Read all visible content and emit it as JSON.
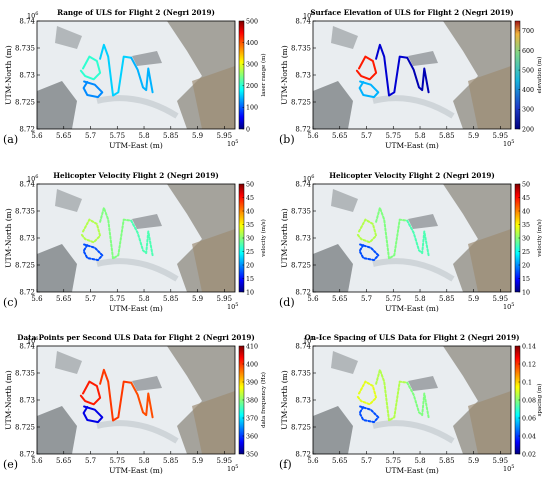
{
  "chart_data": [
    {
      "type": "map",
      "panel_label": "(a)",
      "title": "Range of ULS for Flight 2 (Negri 2019)",
      "xlabel": "UTM-East (m)",
      "ylabel": "UTM-North (m)",
      "x_ticks": [
        "5.6",
        "5.65",
        "5.7",
        "5.75",
        "5.8",
        "5.85",
        "5.9",
        "5.95"
      ],
      "y_ticks": [
        "8.72",
        "8.725",
        "8.73",
        "8.735",
        "8.74"
      ],
      "x_exponent": "10",
      "x_exponent_power": "5",
      "y_exponent": "10",
      "y_exponent_power": "6",
      "xlim": [
        560000,
        597000
      ],
      "ylim": [
        8720000,
        8740000
      ],
      "colorbar": {
        "label": "laser range (m)",
        "ticks": [
          "0",
          "100",
          "200",
          "300",
          "400",
          "500"
        ],
        "range": [
          0,
          500
        ]
      },
      "track_style": "solid",
      "series_color_values": {
        "loops": 0.42,
        "lower": 0.26,
        "main": 0.33,
        "east": 0.3
      }
    },
    {
      "type": "map",
      "panel_label": "(b)",
      "title": "Surface Elevation of ULS for Flight 2 (Negri 2019)",
      "xlabel": "UTM-East (m)",
      "ylabel": "UTM-North (m)",
      "x_ticks": [
        "5.6",
        "5.65",
        "5.7",
        "5.75",
        "5.8",
        "5.85",
        "5.9",
        "5.95"
      ],
      "y_ticks": [
        "8.72",
        "8.725",
        "8.73",
        "8.735",
        "8.74"
      ],
      "x_exponent": "10",
      "x_exponent_power": "5",
      "y_exponent": "10",
      "y_exponent_power": "6",
      "xlim": [
        560000,
        597000
      ],
      "ylim": [
        8720000,
        8740000
      ],
      "colorbar": {
        "label": "elevation (m)",
        "ticks": [
          "200",
          "300",
          "400",
          "500",
          "600",
          "700"
        ],
        "range": [
          200,
          750
        ]
      },
      "track_style": "solid",
      "series_color_values": {
        "loops": 0.85,
        "lower": 0.3,
        "main": 0.08,
        "east": 0.05
      }
    },
    {
      "type": "map",
      "panel_label": "(c)",
      "title": "Helicopter Velocity Flight 2 (Negri 2019)",
      "xlabel": "UTM-East (m)",
      "ylabel": "UTM-North (m)",
      "x_ticks": [
        "5.6",
        "5.65",
        "5.7",
        "5.75",
        "5.8",
        "5.85",
        "5.9",
        "5.95"
      ],
      "y_ticks": [
        "8.72",
        "8.725",
        "8.73",
        "8.735",
        "8.74"
      ],
      "x_exponent": "10",
      "x_exponent_power": "5",
      "y_exponent": "10",
      "y_exponent_power": "6",
      "xlim": [
        560000,
        597000
      ],
      "ylim": [
        8720000,
        8740000
      ],
      "colorbar": {
        "label": "velocity (m/s)",
        "ticks": [
          "10",
          "15",
          "20",
          "25",
          "30",
          "35",
          "40",
          "45",
          "50"
        ],
        "range": [
          10,
          50
        ]
      },
      "track_style": "dotted",
      "series_color_values": {
        "loops": 0.55,
        "lower": 0.2,
        "main": 0.5,
        "east": 0.45
      }
    },
    {
      "type": "map",
      "panel_label": "(d)",
      "title": "Helicopter Velocity Flight 2 (Negri 2019)",
      "xlabel": "UTM-East (m)",
      "ylabel": "UTM-North (m)",
      "x_ticks": [
        "5.6",
        "5.65",
        "5.7",
        "5.75",
        "5.8",
        "5.85",
        "5.9",
        "5.95"
      ],
      "y_ticks": [
        "8.72",
        "8.725",
        "8.73",
        "8.735",
        "8.74"
      ],
      "x_exponent": "10",
      "x_exponent_power": "5",
      "y_exponent": "10",
      "y_exponent_power": "6",
      "xlim": [
        560000,
        597000
      ],
      "ylim": [
        8720000,
        8740000
      ],
      "colorbar": {
        "label": "velocity (m/s)",
        "ticks": [
          "10",
          "15",
          "20",
          "25",
          "30",
          "35",
          "40",
          "45",
          "50"
        ],
        "range": [
          10,
          50
        ]
      },
      "track_style": "dotted",
      "series_color_values": {
        "loops": 0.55,
        "lower": 0.2,
        "main": 0.5,
        "east": 0.45
      }
    },
    {
      "type": "map",
      "panel_label": "(e)",
      "title": "Data Points per Second ULS Data for Flight 2 (Negri 2019)",
      "xlabel": "UTM-East (m)",
      "ylabel": "UTM-North (m)",
      "x_ticks": [
        "5.6",
        "5.65",
        "5.7",
        "5.75",
        "5.8",
        "5.85",
        "5.9",
        "5.95"
      ],
      "y_ticks": [
        "8.72",
        "8.725",
        "8.73",
        "8.735",
        "8.74"
      ],
      "x_exponent": "10",
      "x_exponent_power": "5",
      "y_exponent": "10",
      "y_exponent_power": "6",
      "xlim": [
        560000,
        597000
      ],
      "ylim": [
        8720000,
        8740000
      ],
      "colorbar": {
        "label": "data frequency (Hz)",
        "ticks": [
          "350",
          "370",
          "390",
          "410"
        ],
        "minor_ticks": [
          "360",
          "380",
          "400"
        ],
        "range": [
          350,
          410
        ]
      },
      "track_style": "solid",
      "series_color_values": {
        "loops": 0.85,
        "lower": 0.1,
        "main": 0.82,
        "east": 0.8
      }
    },
    {
      "type": "map",
      "panel_label": "(f)",
      "title": "On-Ice Spacing of ULS Data for Flight 2 (Negri 2019)",
      "xlabel": "UTM-East (m)",
      "ylabel": "UTM-North (m)",
      "x_ticks": [
        "5.6",
        "5.65",
        "5.7",
        "5.75",
        "5.8",
        "5.85",
        "5.9",
        "5.95"
      ],
      "y_ticks": [
        "8.72",
        "8.725",
        "8.73",
        "8.735",
        "8.74"
      ],
      "x_exponent": "10",
      "x_exponent_power": "5",
      "y_exponent": "10",
      "y_exponent_power": "6",
      "xlim": [
        560000,
        597000
      ],
      "ylim": [
        8720000,
        8740000
      ],
      "colorbar": {
        "label": "spacing (m)",
        "ticks": [
          "0.02",
          "0.04",
          "0.06",
          "0.08",
          "0.1",
          "0.12",
          "0.14"
        ],
        "range": [
          0.02,
          0.14
        ]
      },
      "track_style": "dotted",
      "series_color_values": {
        "loops": 0.6,
        "lower": 0.2,
        "main": 0.55,
        "east": 0.5
      }
    }
  ],
  "flight_track": {
    "loops": [
      [
        568600,
        8731200
      ],
      [
        569800,
        8733400
      ],
      [
        571200,
        8732600
      ],
      [
        571800,
        8730400
      ],
      [
        570600,
        8729200
      ],
      [
        569000,
        8729800
      ],
      [
        568200,
        8730800
      ]
    ],
    "lower": [
      [
        568800,
        8728800
      ],
      [
        570800,
        8728200
      ],
      [
        572200,
        8726800
      ],
      [
        571400,
        8725900
      ],
      [
        569400,
        8726300
      ],
      [
        568700,
        8727600
      ],
      [
        569400,
        8728700
      ]
    ],
    "main": [
      [
        571800,
        8733000
      ],
      [
        572500,
        8735600
      ],
      [
        573300,
        8733400
      ],
      [
        574200,
        8726200
      ],
      [
        575200,
        8726800
      ],
      [
        576200,
        8733400
      ],
      [
        577600,
        8733200
      ]
    ],
    "east": [
      [
        577600,
        8733200
      ],
      [
        578800,
        8731000
      ],
      [
        579800,
        8727700
      ],
      [
        580400,
        8727200
      ],
      [
        580800,
        8731200
      ],
      [
        581600,
        8726800
      ]
    ]
  },
  "colors": {
    "map_ice": "#e9edf0",
    "map_rock": "#4d5256",
    "map_land": "#9c8c74",
    "frame": "#000000"
  }
}
